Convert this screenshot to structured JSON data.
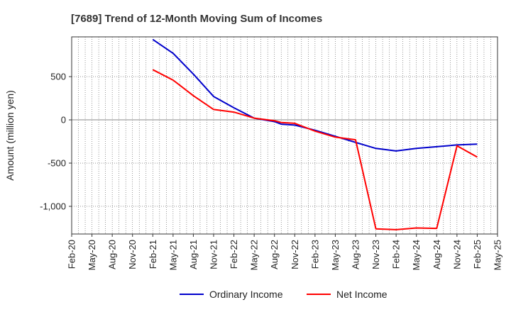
{
  "chart_data": {
    "type": "line",
    "title": "[7689]  Trend of 12-Month Moving Sum of Incomes",
    "xlabel": "",
    "ylabel": "Amount (million yen)",
    "x_ticks": [
      "Feb-20",
      "May-20",
      "Aug-20",
      "Nov-20",
      "Feb-21",
      "May-21",
      "Aug-21",
      "Nov-21",
      "Feb-22",
      "May-22",
      "Aug-22",
      "Nov-22",
      "Feb-23",
      "May-23",
      "Aug-23",
      "Nov-23",
      "Feb-24",
      "May-24",
      "Aug-24",
      "Nov-24",
      "Feb-25",
      "May-25"
    ],
    "y_ticks": [
      {
        "value": 500,
        "label": "500"
      },
      {
        "value": 0,
        "label": "0"
      },
      {
        "value": -500,
        "label": "-500"
      },
      {
        "value": -1000,
        "label": "-1,000"
      }
    ],
    "ylim": [
      -1320,
      960
    ],
    "x_range": [
      "Feb-20",
      "May-25"
    ],
    "grid": true,
    "legend_position": "bottom",
    "series": [
      {
        "name": "Ordinary Income",
        "color": "#0000cc",
        "points": [
          [
            "Feb-21",
            930
          ],
          [
            "May-21",
            770
          ],
          [
            "Aug-21",
            530
          ],
          [
            "Nov-21",
            270
          ],
          [
            "Feb-22",
            140
          ],
          [
            "May-22",
            20
          ],
          [
            "Aug-22",
            -20
          ],
          [
            "Sep-22",
            -50
          ],
          [
            "Nov-22",
            -60
          ],
          [
            "Feb-23",
            -120
          ],
          [
            "May-23",
            -190
          ],
          [
            "Aug-23",
            -260
          ],
          [
            "Nov-23",
            -330
          ],
          [
            "Feb-24",
            -360
          ],
          [
            "May-24",
            -330
          ],
          [
            "Aug-24",
            -310
          ],
          [
            "Nov-24",
            -290
          ],
          [
            "Feb-25",
            -280
          ]
        ]
      },
      {
        "name": "Net Income",
        "color": "#ff0000",
        "points": [
          [
            "Feb-21",
            580
          ],
          [
            "May-21",
            460
          ],
          [
            "Aug-21",
            280
          ],
          [
            "Nov-21",
            120
          ],
          [
            "Feb-22",
            90
          ],
          [
            "May-22",
            20
          ],
          [
            "Aug-22",
            -10
          ],
          [
            "Sep-22",
            -30
          ],
          [
            "Nov-22",
            -40
          ],
          [
            "Feb-23",
            -130
          ],
          [
            "May-23",
            -200
          ],
          [
            "Aug-23",
            -230
          ],
          [
            "Nov-23",
            -1260
          ],
          [
            "Feb-24",
            -1270
          ],
          [
            "May-24",
            -1250
          ],
          [
            "Aug-24",
            -1255
          ],
          [
            "Nov-24",
            -300
          ],
          [
            "Feb-25",
            -430
          ]
        ]
      }
    ]
  }
}
